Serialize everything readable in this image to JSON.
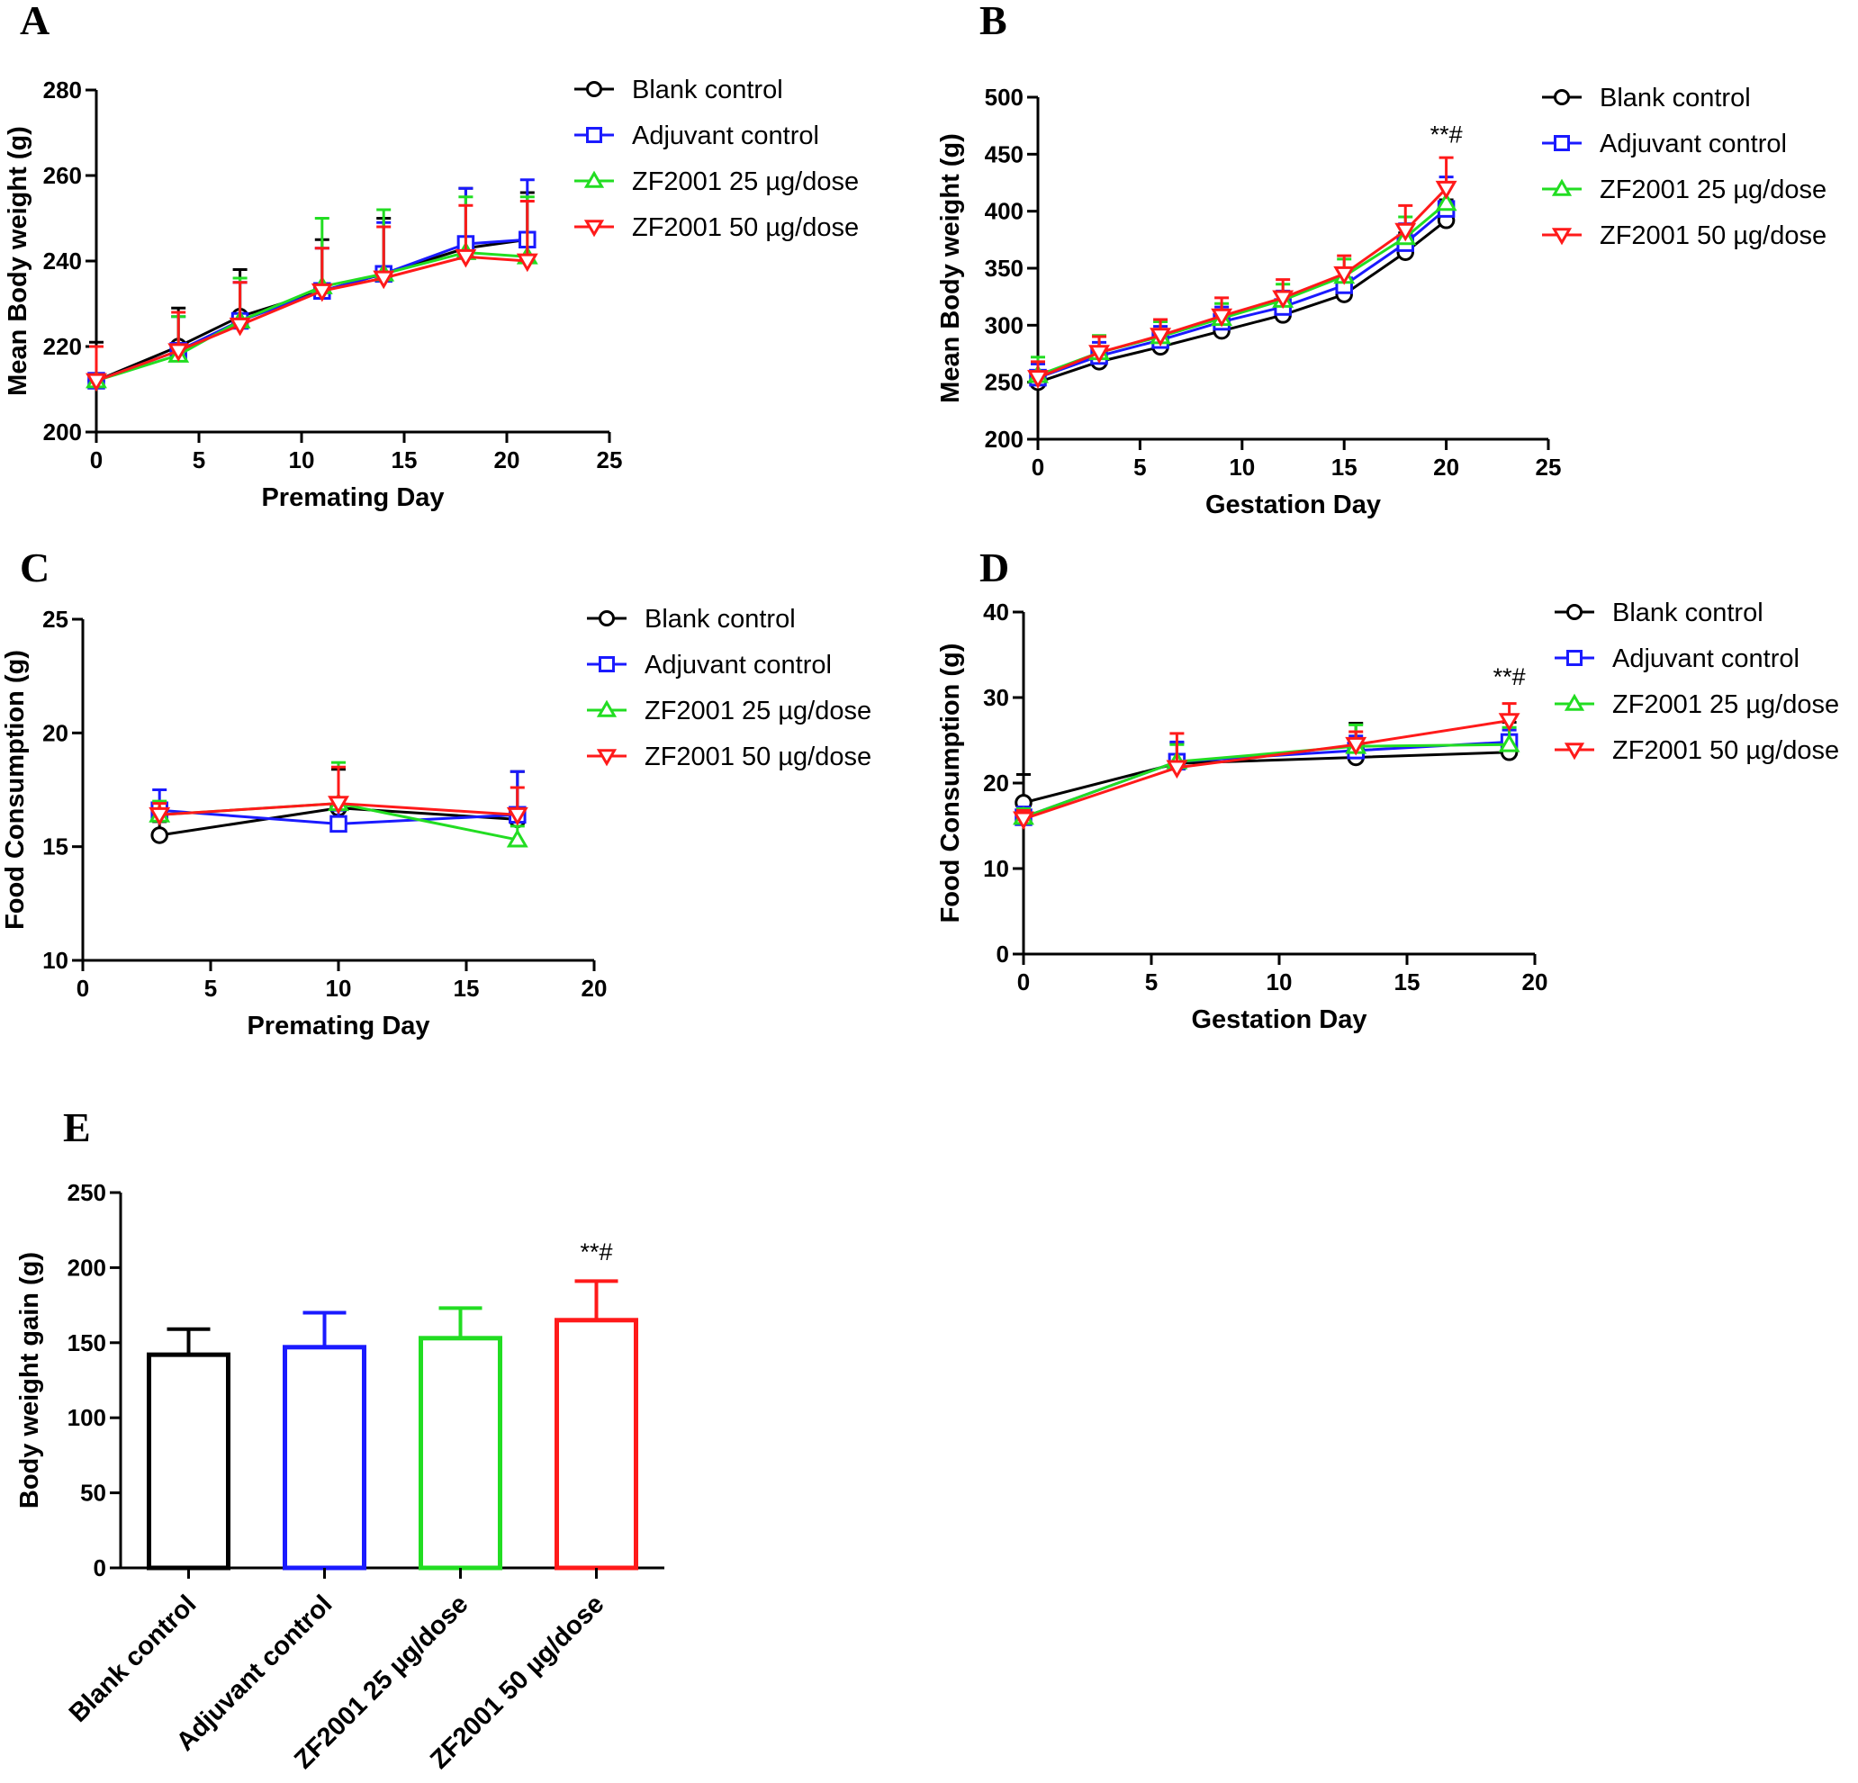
{
  "chart_data": [
    {
      "id": "A",
      "type": "line",
      "panel_label": "A",
      "xlabel": "Premating Day",
      "ylabel": "Mean Body weight (g)",
      "xlim": [
        0,
        25
      ],
      "ylim": [
        200,
        280
      ],
      "xticks": [
        0,
        5,
        10,
        15,
        20,
        25
      ],
      "yticks": [
        200,
        220,
        240,
        260,
        280
      ],
      "x": [
        0,
        4,
        7,
        11,
        14,
        18,
        21
      ],
      "series": [
        {
          "name": "Blank control",
          "color": "#000000",
          "marker": "circle",
          "values": [
            212,
            220,
            227,
            233,
            237,
            243,
            245
          ],
          "errors": [
            9,
            9,
            11,
            12,
            13,
            14,
            11
          ]
        },
        {
          "name": "Adjuvant control",
          "color": "#1a1aff",
          "marker": "square",
          "values": [
            212,
            219,
            226,
            233,
            237,
            244,
            245
          ],
          "errors": [
            8,
            8,
            9,
            10,
            12,
            13,
            14
          ]
        },
        {
          "name": "ZF2001 25 µg/dose",
          "color": "#22dd22",
          "marker": "triangle-up",
          "values": [
            212,
            218,
            226,
            234,
            237,
            242,
            241
          ],
          "errors": [
            8,
            9,
            10,
            16,
            15,
            13,
            14
          ]
        },
        {
          "name": "ZF2001 50 µg/dose",
          "color": "#ff1a1a",
          "marker": "triangle-down",
          "values": [
            212,
            219,
            225,
            233,
            236,
            241,
            240
          ],
          "errors": [
            8,
            9,
            10,
            10,
            12,
            12,
            14
          ]
        }
      ],
      "annotations": []
    },
    {
      "id": "B",
      "type": "line",
      "panel_label": "B",
      "xlabel": "Gestation Day",
      "ylabel": "Mean Body weight (g)",
      "xlim": [
        0,
        25
      ],
      "ylim": [
        200,
        500
      ],
      "xticks": [
        0,
        5,
        10,
        15,
        20,
        25
      ],
      "yticks": [
        200,
        250,
        300,
        350,
        400,
        450,
        500
      ],
      "x": [
        0,
        3,
        6,
        9,
        12,
        15,
        18,
        20
      ],
      "series": [
        {
          "name": "Blank control",
          "color": "#000000",
          "marker": "circle",
          "values": [
            250,
            268,
            281,
            295,
            309,
            327,
            364,
            392
          ],
          "errors": [
            10,
            10,
            11,
            12,
            12,
            14,
            17,
            18
          ]
        },
        {
          "name": "Adjuvant control",
          "color": "#1a1aff",
          "marker": "square",
          "values": [
            254,
            273,
            287,
            303,
            316,
            335,
            372,
            402
          ],
          "errors": [
            12,
            12,
            12,
            13,
            14,
            15,
            17,
            28
          ]
        },
        {
          "name": "ZF2001 25 µg/dose",
          "color": "#22dd22",
          "marker": "triangle-up",
          "values": [
            256,
            276,
            290,
            306,
            322,
            343,
            377,
            407
          ],
          "errors": [
            16,
            15,
            13,
            13,
            14,
            15,
            18,
            18
          ]
        },
        {
          "name": "ZF2001 50 µg/dose",
          "color": "#ff1a1a",
          "marker": "triangle-down",
          "values": [
            254,
            276,
            291,
            308,
            324,
            345,
            383,
            420
          ],
          "errors": [
            14,
            14,
            14,
            16,
            16,
            16,
            22,
            27
          ]
        }
      ],
      "annotations": [
        {
          "text": "**#",
          "x": 20,
          "y": 460
        }
      ]
    },
    {
      "id": "C",
      "type": "line",
      "panel_label": "C",
      "xlabel": "Premating Day",
      "ylabel": "Food Consumption  (g)",
      "xlim": [
        0,
        20
      ],
      "ylim": [
        10,
        25
      ],
      "xticks": [
        0,
        5,
        10,
        15,
        20
      ],
      "yticks": [
        10,
        15,
        20,
        25
      ],
      "x": [
        3,
        10,
        17
      ],
      "series": [
        {
          "name": "Blank control",
          "color": "#000000",
          "marker": "circle",
          "values": [
            15.5,
            16.7,
            16.2
          ],
          "errors": [
            0.6,
            1.7,
            2.1
          ]
        },
        {
          "name": "Adjuvant control",
          "color": "#1a1aff",
          "marker": "square",
          "values": [
            16.6,
            16.0,
            16.4
          ],
          "errors": [
            0.9,
            0.6,
            1.9
          ]
        },
        {
          "name": "ZF2001 25 µg/dose",
          "color": "#22dd22",
          "marker": "triangle-up",
          "values": [
            16.4,
            16.9,
            15.3
          ],
          "errors": [
            0.6,
            1.8,
            0.6
          ]
        },
        {
          "name": "ZF2001 50 µg/dose",
          "color": "#ff1a1a",
          "marker": "triangle-down",
          "values": [
            16.4,
            16.9,
            16.4
          ],
          "errors": [
            0.5,
            1.6,
            1.2
          ]
        }
      ],
      "annotations": []
    },
    {
      "id": "D",
      "type": "line",
      "panel_label": "D",
      "xlabel": "Gestation Day",
      "ylabel": "Food Consumption  (g)",
      "xlim": [
        0,
        20
      ],
      "ylim": [
        0,
        40
      ],
      "xticks": [
        0,
        5,
        10,
        15,
        20
      ],
      "yticks": [
        0,
        10,
        20,
        30,
        40
      ],
      "x": [
        0,
        6,
        13,
        19
      ],
      "series": [
        {
          "name": "Blank control",
          "color": "#000000",
          "marker": "circle",
          "values": [
            17.7,
            22.3,
            23.0,
            23.6
          ],
          "errors": [
            3.3,
            2.4,
            4.0,
            3.5
          ]
        },
        {
          "name": "Adjuvant control",
          "color": "#1a1aff",
          "marker": "square",
          "values": [
            16.0,
            22.5,
            23.8,
            24.8
          ],
          "errors": [
            1.2,
            2.3,
            1.7,
            1.4
          ]
        },
        {
          "name": "ZF2001 25 µg/dose",
          "color": "#22dd22",
          "marker": "triangle-up",
          "values": [
            16.0,
            22.5,
            24.3,
            24.5
          ],
          "errors": [
            1.0,
            2.0,
            2.5,
            2.0
          ]
        },
        {
          "name": "ZF2001 50 µg/dose",
          "color": "#ff1a1a",
          "marker": "triangle-down",
          "values": [
            15.8,
            21.8,
            24.5,
            27.3
          ],
          "errors": [
            1.0,
            4.0,
            1.5,
            2.0
          ]
        }
      ],
      "annotations": [
        {
          "text": "**#",
          "x": 19,
          "y": 31.5
        }
      ]
    },
    {
      "id": "E",
      "type": "bar",
      "panel_label": "E",
      "xlabel": "",
      "ylabel": "Body weight gain (g)",
      "ylim": [
        0,
        250
      ],
      "yticks": [
        0,
        50,
        100,
        150,
        200,
        250
      ],
      "categories": [
        "Blank control",
        "Adjuvant control",
        "ZF2001 25 µg/dose",
        "ZF2001 50 µg/dose"
      ],
      "colors": [
        "#000000",
        "#1a1aff",
        "#22dd22",
        "#ff1a1a"
      ],
      "values": [
        142,
        147,
        153,
        165
      ],
      "errors": [
        17,
        23,
        20,
        26
      ],
      "annotations": [
        {
          "text": "**#",
          "category": 3,
          "y": 205
        }
      ]
    }
  ]
}
